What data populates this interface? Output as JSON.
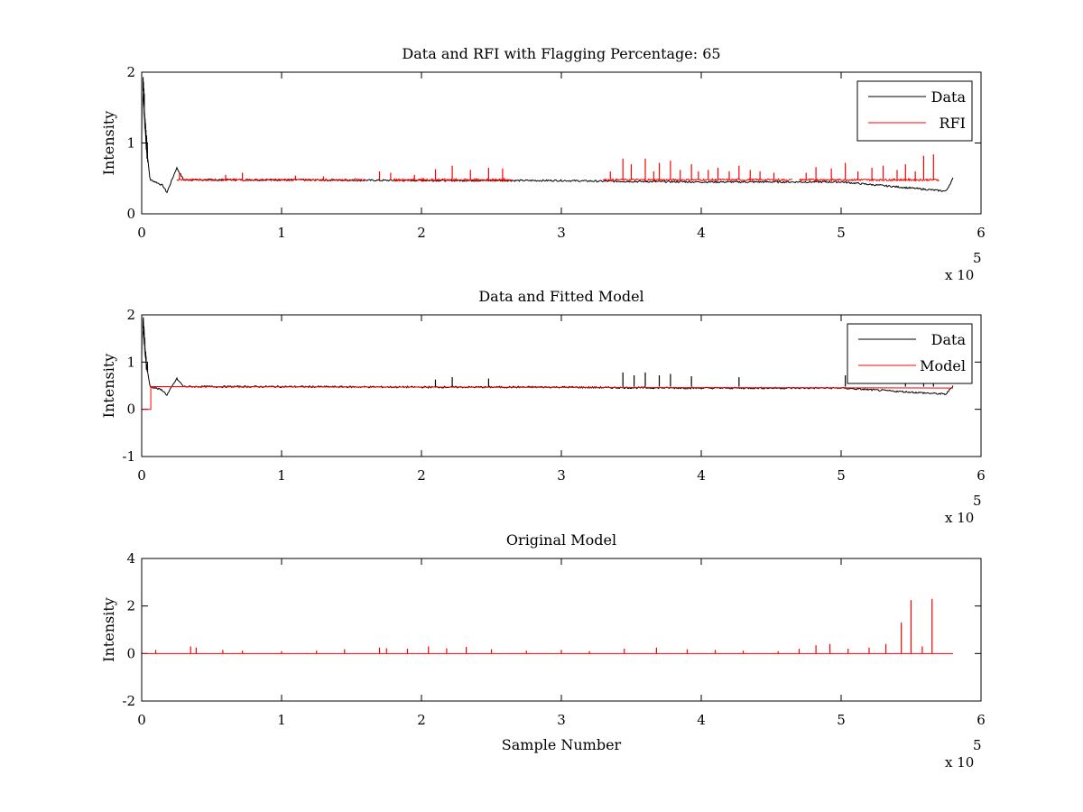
{
  "chart_data": [
    {
      "type": "line",
      "title": "Data and RFI with Flagging Percentage: 65",
      "xlabel": "",
      "ylabel": "Intensity",
      "xlim": [
        0,
        600000
      ],
      "ylim": [
        0,
        2
      ],
      "xticks": [
        "0",
        "1",
        "2",
        "3",
        "4",
        "5",
        "6"
      ],
      "yticks": [
        "0",
        "1",
        "2"
      ],
      "x_multiplier": "x 10",
      "x_multiplier_exp": "5",
      "grid": false,
      "legend_position": "top-right",
      "series": [
        {
          "name": "Data",
          "color": "#000000",
          "baseline": 0.48,
          "x": [
            0,
            1000,
            3000,
            6000,
            10000,
            15000,
            18000,
            22000,
            25000,
            30000,
            100000,
            200000,
            300000,
            330000,
            400000,
            500000,
            575000,
            580000
          ],
          "y": [
            0.7,
            1.9,
            1.0,
            0.48,
            0.45,
            0.4,
            0.3,
            0.5,
            0.65,
            0.48,
            0.48,
            0.47,
            0.47,
            0.46,
            0.45,
            0.45,
            0.32,
            0.5
          ]
        },
        {
          "name": "RFI",
          "color": "#ff0000",
          "baseline": 0.48,
          "segments": [
            [
              25000,
              160000
            ],
            [
              180000,
              265000
            ],
            [
              330000,
              465000
            ],
            [
              470000,
              570000
            ]
          ],
          "spikes": [
            {
              "x": 27000,
              "y": 0.58
            },
            {
              "x": 60000,
              "y": 0.55
            },
            {
              "x": 72000,
              "y": 0.58
            },
            {
              "x": 110000,
              "y": 0.54
            },
            {
              "x": 130000,
              "y": 0.53
            },
            {
              "x": 170000,
              "y": 0.6
            },
            {
              "x": 178000,
              "y": 0.58
            },
            {
              "x": 195000,
              "y": 0.55
            },
            {
              "x": 210000,
              "y": 0.63
            },
            {
              "x": 222000,
              "y": 0.68
            },
            {
              "x": 235000,
              "y": 0.62
            },
            {
              "x": 248000,
              "y": 0.65
            },
            {
              "x": 258000,
              "y": 0.64
            },
            {
              "x": 335000,
              "y": 0.6
            },
            {
              "x": 344000,
              "y": 0.78
            },
            {
              "x": 350000,
              "y": 0.7
            },
            {
              "x": 360000,
              "y": 0.78
            },
            {
              "x": 366000,
              "y": 0.6
            },
            {
              "x": 370000,
              "y": 0.72
            },
            {
              "x": 378000,
              "y": 0.75
            },
            {
              "x": 385000,
              "y": 0.62
            },
            {
              "x": 393000,
              "y": 0.7
            },
            {
              "x": 398000,
              "y": 0.6
            },
            {
              "x": 405000,
              "y": 0.62
            },
            {
              "x": 412000,
              "y": 0.65
            },
            {
              "x": 420000,
              "y": 0.6
            },
            {
              "x": 427000,
              "y": 0.68
            },
            {
              "x": 435000,
              "y": 0.62
            },
            {
              "x": 442000,
              "y": 0.6
            },
            {
              "x": 452000,
              "y": 0.58
            },
            {
              "x": 475000,
              "y": 0.58
            },
            {
              "x": 482000,
              "y": 0.66
            },
            {
              "x": 493000,
              "y": 0.64
            },
            {
              "x": 503000,
              "y": 0.72
            },
            {
              "x": 512000,
              "y": 0.6
            },
            {
              "x": 522000,
              "y": 0.65
            },
            {
              "x": 530000,
              "y": 0.68
            },
            {
              "x": 540000,
              "y": 0.62
            },
            {
              "x": 546000,
              "y": 0.7
            },
            {
              "x": 553000,
              "y": 0.6
            },
            {
              "x": 559000,
              "y": 0.82
            },
            {
              "x": 566000,
              "y": 0.84
            }
          ]
        }
      ]
    },
    {
      "type": "line",
      "title": "Data and Fitted Model",
      "xlabel": "",
      "ylabel": "Intensity",
      "xlim": [
        0,
        600000
      ],
      "ylim": [
        -1,
        2
      ],
      "xticks": [
        "0",
        "1",
        "2",
        "3",
        "4",
        "5",
        "6"
      ],
      "yticks": [
        "-1",
        "0",
        "1",
        "2"
      ],
      "x_multiplier": "x 10",
      "x_multiplier_exp": "5",
      "grid": false,
      "legend_position": "top-right",
      "series": [
        {
          "name": "Data",
          "color": "#000000",
          "baseline": 0.48,
          "x": [
            0,
            1000,
            3000,
            6000,
            10000,
            15000,
            18000,
            22000,
            25000,
            30000,
            100000,
            200000,
            300000,
            330000,
            400000,
            500000,
            575000,
            580000
          ],
          "y": [
            0.7,
            1.9,
            1.0,
            0.48,
            0.45,
            0.4,
            0.3,
            0.5,
            0.65,
            0.48,
            0.48,
            0.47,
            0.47,
            0.46,
            0.45,
            0.45,
            0.32,
            0.5
          ],
          "spikes": [
            {
              "x": 210000,
              "y": 0.63
            },
            {
              "x": 222000,
              "y": 0.68
            },
            {
              "x": 248000,
              "y": 0.65
            },
            {
              "x": 344000,
              "y": 0.78
            },
            {
              "x": 352000,
              "y": 0.72
            },
            {
              "x": 360000,
              "y": 0.78
            },
            {
              "x": 370000,
              "y": 0.72
            },
            {
              "x": 378000,
              "y": 0.75
            },
            {
              "x": 393000,
              "y": 0.7
            },
            {
              "x": 427000,
              "y": 0.68
            },
            {
              "x": 503000,
              "y": 0.72
            },
            {
              "x": 546000,
              "y": 0.7
            },
            {
              "x": 559000,
              "y": 0.82
            },
            {
              "x": 566000,
              "y": 0.84
            }
          ]
        },
        {
          "name": "Model",
          "color": "#ff0000",
          "x": [
            0,
            6500,
            6500,
            580000
          ],
          "y": [
            0.0,
            0.0,
            0.48,
            0.45
          ]
        }
      ]
    },
    {
      "type": "line",
      "title": "Original Model",
      "xlabel": "Sample Number",
      "ylabel": "Intensity",
      "xlim": [
        0,
        600000
      ],
      "ylim": [
        -2,
        4
      ],
      "xticks": [
        "0",
        "1",
        "2",
        "3",
        "4",
        "5",
        "6"
      ],
      "yticks": [
        "-2",
        "0",
        "2",
        "4"
      ],
      "x_multiplier": "x 10",
      "x_multiplier_exp": "5",
      "grid": false,
      "series": [
        {
          "color": "#ff0000",
          "baseline": 0.0,
          "x_range": [
            0,
            580000
          ],
          "spikes": [
            {
              "x": 10000,
              "y": 0.15
            },
            {
              "x": 35000,
              "y": 0.3
            },
            {
              "x": 39000,
              "y": 0.25
            },
            {
              "x": 58000,
              "y": 0.15
            },
            {
              "x": 72000,
              "y": 0.12
            },
            {
              "x": 100000,
              "y": 0.1
            },
            {
              "x": 125000,
              "y": 0.12
            },
            {
              "x": 145000,
              "y": 0.18
            },
            {
              "x": 170000,
              "y": 0.25
            },
            {
              "x": 175000,
              "y": 0.22
            },
            {
              "x": 190000,
              "y": 0.2
            },
            {
              "x": 205000,
              "y": 0.3
            },
            {
              "x": 218000,
              "y": 0.22
            },
            {
              "x": 232000,
              "y": 0.28
            },
            {
              "x": 250000,
              "y": 0.18
            },
            {
              "x": 275000,
              "y": 0.12
            },
            {
              "x": 300000,
              "y": 0.15
            },
            {
              "x": 320000,
              "y": 0.1
            },
            {
              "x": 345000,
              "y": 0.2
            },
            {
              "x": 368000,
              "y": 0.25
            },
            {
              "x": 390000,
              "y": 0.18
            },
            {
              "x": 410000,
              "y": 0.15
            },
            {
              "x": 430000,
              "y": 0.12
            },
            {
              "x": 455000,
              "y": 0.1
            },
            {
              "x": 470000,
              "y": 0.2
            },
            {
              "x": 482000,
              "y": 0.35
            },
            {
              "x": 492000,
              "y": 0.4
            },
            {
              "x": 505000,
              "y": 0.2
            },
            {
              "x": 520000,
              "y": 0.25
            },
            {
              "x": 532000,
              "y": 0.4
            },
            {
              "x": 543000,
              "y": 1.3
            },
            {
              "x": 550000,
              "y": 2.25
            },
            {
              "x": 558000,
              "y": 0.3
            },
            {
              "x": 565000,
              "y": 2.3
            }
          ]
        }
      ]
    }
  ]
}
